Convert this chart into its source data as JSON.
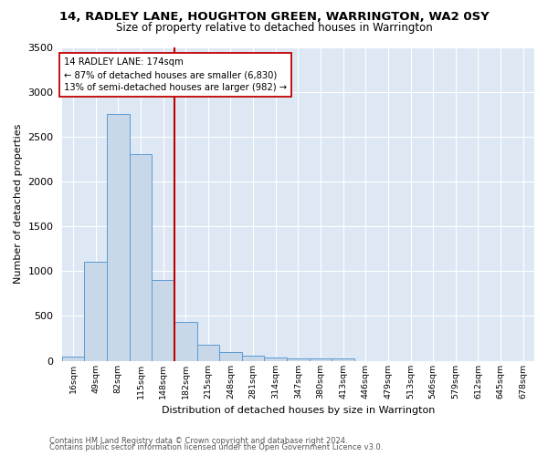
{
  "title": "14, RADLEY LANE, HOUGHTON GREEN, WARRINGTON, WA2 0SY",
  "subtitle": "Size of property relative to detached houses in Warrington",
  "xlabel": "Distribution of detached houses by size in Warrington",
  "ylabel": "Number of detached properties",
  "categories": [
    "16sqm",
    "49sqm",
    "82sqm",
    "115sqm",
    "148sqm",
    "182sqm",
    "215sqm",
    "248sqm",
    "281sqm",
    "314sqm",
    "347sqm",
    "380sqm",
    "413sqm",
    "446sqm",
    "479sqm",
    "513sqm",
    "546sqm",
    "579sqm",
    "612sqm",
    "645sqm",
    "678sqm"
  ],
  "values": [
    50,
    1100,
    2750,
    2300,
    900,
    430,
    175,
    100,
    55,
    40,
    30,
    25,
    25,
    0,
    0,
    0,
    0,
    0,
    0,
    0,
    0
  ],
  "bar_color": "#c8d8e8",
  "bar_edge_color": "#5b9bd5",
  "vertical_line_color": "#c00000",
  "annotation_text": "14 RADLEY LANE: 174sqm\n← 87% of detached houses are smaller (6,830)\n13% of semi-detached houses are larger (982) →",
  "annotation_box_color": "white",
  "annotation_box_edge_color": "#c00000",
  "ylim": [
    0,
    3500
  ],
  "yticks": [
    0,
    500,
    1000,
    1500,
    2000,
    2500,
    3000,
    3500
  ],
  "bg_color": "#dde8f4",
  "grid_color": "white",
  "footnote1": "Contains HM Land Registry data © Crown copyright and database right 2024.",
  "footnote2": "Contains public sector information licensed under the Open Government Licence v3.0."
}
